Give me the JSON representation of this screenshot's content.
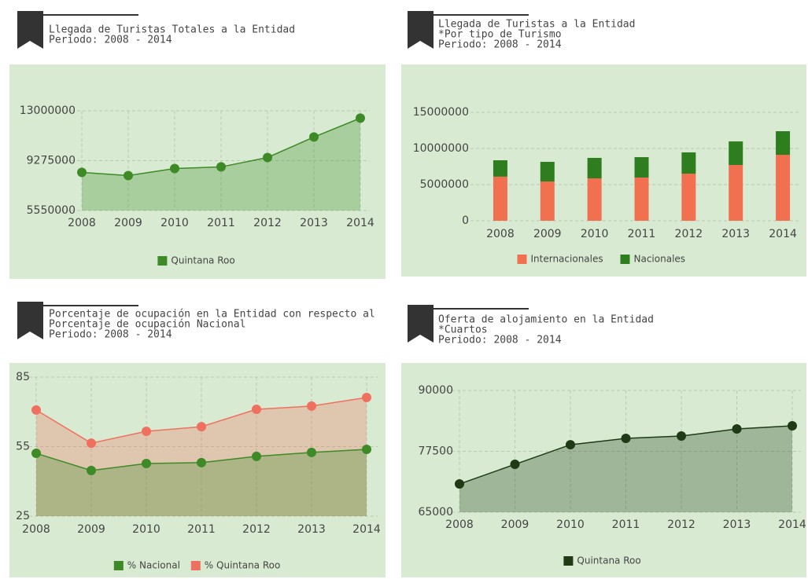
{
  "chart_data": [
    {
      "type": "line",
      "title": [
        "Llegada de Turistas Totales a la Entidad",
        "Periodo: 2008 - 2014"
      ],
      "categories": [
        "2008",
        "2009",
        "2010",
        "2011",
        "2012",
        "2013",
        "2014"
      ],
      "series": [
        {
          "name": "Quintana Roo",
          "color": "#3d8a26",
          "values": [
            8400000,
            8160000,
            8690000,
            8810000,
            9510000,
            11040000,
            12450000
          ]
        }
      ],
      "ylim": [
        5550000,
        13000000
      ],
      "yticks": [
        5550000,
        9275000,
        13000000
      ],
      "area": true,
      "grid": true
    },
    {
      "type": "bar",
      "stacked": true,
      "title": [
        "Llegada de Turistas a la Entidad",
        "*Por tipo de Turismo",
        "Periodo: 2008 - 2014"
      ],
      "categories": [
        "2008",
        "2009",
        "2010",
        "2011",
        "2012",
        "2013",
        "2014"
      ],
      "series": [
        {
          "name": "Internacionales",
          "color": "#f07050",
          "values": [
            6100000,
            5430000,
            5870000,
            5980000,
            6520000,
            7720000,
            9130000
          ]
        },
        {
          "name": "Nacionales",
          "color": "#2e7d1f",
          "values": [
            2270000,
            2720000,
            2830000,
            2820000,
            2940000,
            3260000,
            3260000
          ]
        }
      ],
      "ylim": [
        0,
        15000000
      ],
      "yticks": [
        0,
        5000000,
        10000000,
        15000000
      ],
      "grid": true
    },
    {
      "type": "line",
      "title": [
        "Porcentaje de ocupación en la Entidad con respecto al",
        "Porcentaje de ocupación Nacional",
        "Periodo: 2008 - 2014"
      ],
      "categories": [
        "2008",
        "2009",
        "2010",
        "2011",
        "2012",
        "2013",
        "2014"
      ],
      "series": [
        {
          "name": "% Nacional",
          "color": "#3d8a26",
          "values": [
            52.1,
            44.7,
            47.7,
            48.1,
            50.8,
            52.5,
            53.8
          ]
        },
        {
          "name": "% Quintana Roo",
          "color": "#f07060",
          "values": [
            70.8,
            56.5,
            61.6,
            63.6,
            71.1,
            72.5,
            76.2
          ]
        }
      ],
      "ylim": [
        25,
        85
      ],
      "yticks": [
        25,
        55,
        85
      ],
      "area": true,
      "grid": true
    },
    {
      "type": "line",
      "title": [
        "Oferta de alojamiento en la Entidad",
        "*Cuartos",
        "Periodo: 2008 - 2014"
      ],
      "categories": [
        "2008",
        "2009",
        "2010",
        "2011",
        "2012",
        "2013",
        "2014"
      ],
      "series": [
        {
          "name": "Quintana Roo",
          "color": "#1f3a14",
          "values": [
            70800,
            74830,
            78860,
            80160,
            80640,
            82100,
            82740
          ]
        }
      ],
      "ylim": [
        65000,
        90000
      ],
      "yticks": [
        65000,
        77500,
        90000
      ],
      "area": true,
      "grid": true
    }
  ]
}
